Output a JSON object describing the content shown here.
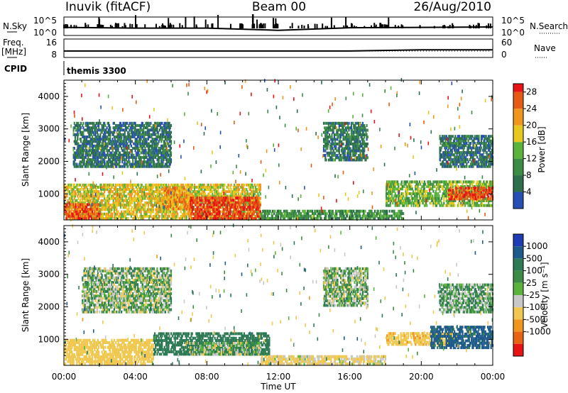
{
  "header": {
    "station": "Inuvik (fitACF)",
    "beam": "Beam 00",
    "date": "26/Aug/2010"
  },
  "top_panel": {
    "left_label": "N.Sky",
    "right_label": "N.Search",
    "left_ticks": [
      "10^5",
      "10^0"
    ],
    "right_ticks": [
      "10^5",
      "10^0"
    ]
  },
  "freq_panel": {
    "left_label_1": "Freq.",
    "left_label_2": "[MHz]",
    "right_label": "Nave",
    "left_ticks": [
      "16",
      "8"
    ],
    "right_ticks": [
      "60",
      "0"
    ]
  },
  "cpid_panel": {
    "label": "CPID",
    "value": "themis 3300"
  },
  "colors": {
    "power_scale": [
      "#1e1ee6",
      "#2850b4",
      "#2d6e4b",
      "#3c8c46",
      "#5ab43c",
      "#e6c81e",
      "#f0961e",
      "#e65a14",
      "#e61414"
    ],
    "velocity_scale": [
      "#1e3cb4",
      "#1e5a8c",
      "#2d7a55",
      "#3c8c46",
      "#5ab43c",
      "#c8c8c8",
      "#f0c850",
      "#f0961e",
      "#e66414",
      "#e61414"
    ],
    "power_cutoffs": [
      4,
      8,
      12,
      16,
      20,
      24,
      28
    ],
    "velocity_cutoffs": [
      1000,
      500,
      100,
      25,
      -25,
      -100,
      -500,
      -1000
    ]
  },
  "chart_data": [
    {
      "type": "line",
      "name": "sky-noise-panel",
      "x": [
        "00:00",
        "04:00",
        "08:00",
        "12:00",
        "16:00",
        "20:00",
        "00:00"
      ],
      "series": [
        {
          "name": "N.Sky",
          "values": [
            2.2,
            2.0,
            2.0,
            1.4,
            2.1,
            2.2,
            2.3
          ]
        }
      ],
      "ylim": [
        0,
        5
      ],
      "y_log_base": 10
    },
    {
      "type": "line",
      "name": "frequency-panel",
      "x": [
        "00:00",
        "04:00",
        "08:00",
        "12:00",
        "16:00",
        "20:00",
        "00:00"
      ],
      "series": [
        {
          "name": "Freq.",
          "values": [
            10.8,
            10.8,
            10.8,
            10.8,
            10.8,
            11.3,
            11.3
          ]
        }
      ],
      "ylim": [
        8,
        16
      ]
    },
    {
      "type": "heatmap",
      "name": "power-panel",
      "xlabel": "",
      "ylabel": "Slant Range [km]",
      "xlim_hours": [
        0,
        24
      ],
      "ylim": [
        200,
        4500
      ],
      "y_ticks": [
        1000,
        2000,
        3000,
        4000
      ],
      "colorbar": {
        "label": "Power [dB]",
        "ticks": [
          4,
          8,
          12,
          16,
          20,
          24,
          28
        ],
        "range": [
          0,
          30
        ]
      },
      "features": [
        {
          "time_start": 0.0,
          "time_end": 11.0,
          "range_start": 200,
          "range_end": 1300,
          "value": 18
        },
        {
          "time_start": 7.0,
          "time_end": 11.0,
          "range_start": 200,
          "range_end": 900,
          "value": 28
        },
        {
          "time_start": 0.0,
          "time_end": 2.0,
          "range_start": 200,
          "range_end": 700,
          "value": 26
        },
        {
          "time_start": 5.5,
          "time_end": 7.0,
          "range_start": 500,
          "range_end": 1200,
          "value": 22
        },
        {
          "time_start": 11.0,
          "time_end": 19.0,
          "range_start": 200,
          "range_end": 500,
          "value": 10
        },
        {
          "time_start": 18.0,
          "time_end": 24.0,
          "range_start": 600,
          "range_end": 1400,
          "value": 14
        },
        {
          "time_start": 21.5,
          "time_end": 24.0,
          "range_start": 800,
          "range_end": 1200,
          "value": 27
        },
        {
          "time_start": 0.5,
          "time_end": 6.0,
          "range_start": 1800,
          "range_end": 3200,
          "value": 6
        },
        {
          "time_start": 14.5,
          "time_end": 17.0,
          "range_start": 2000,
          "range_end": 3200,
          "value": 7
        },
        {
          "time_start": 21.0,
          "time_end": 24.0,
          "range_start": 1800,
          "range_end": 2800,
          "value": 6
        }
      ]
    },
    {
      "type": "heatmap",
      "name": "velocity-panel",
      "xlabel": "Time UT",
      "ylabel": "Slant Range [km]",
      "x_ticks": [
        "00:00",
        "04:00",
        "08:00",
        "12:00",
        "16:00",
        "20:00",
        "00:00"
      ],
      "xlim_hours": [
        0,
        24
      ],
      "ylim": [
        200,
        4500
      ],
      "y_ticks": [
        1000,
        2000,
        3000,
        4000
      ],
      "colorbar": {
        "label": "Velocity [m s⁻¹]",
        "ticks": [
          1000,
          500,
          100,
          25,
          -25,
          -100,
          -500,
          -1000
        ],
        "range": [
          -1500,
          1500
        ]
      },
      "features": [
        {
          "time_start": 0.0,
          "time_end": 5.0,
          "range_start": 200,
          "range_end": 1000,
          "value": -300
        },
        {
          "time_start": 5.0,
          "time_end": 11.5,
          "range_start": 500,
          "range_end": 1200,
          "value": 250
        },
        {
          "time_start": 7.0,
          "time_end": 11.0,
          "range_start": 500,
          "range_end": 900,
          "value": 0
        },
        {
          "time_start": 11.0,
          "time_end": 18.0,
          "range_start": 200,
          "range_end": 500,
          "value": -150
        },
        {
          "time_start": 18.0,
          "time_end": 22.0,
          "range_start": 800,
          "range_end": 1200,
          "value": -400
        },
        {
          "time_start": 20.5,
          "time_end": 24.0,
          "range_start": 700,
          "range_end": 1400,
          "value": 600
        },
        {
          "time_start": 1.0,
          "time_end": 6.0,
          "range_start": 1800,
          "range_end": 3200,
          "value": 0
        },
        {
          "time_start": 14.5,
          "time_end": 17.0,
          "range_start": 2000,
          "range_end": 3200,
          "value": 0
        },
        {
          "time_start": 21.0,
          "time_end": 24.0,
          "range_start": 1800,
          "range_end": 2700,
          "value": 50
        }
      ]
    }
  ]
}
